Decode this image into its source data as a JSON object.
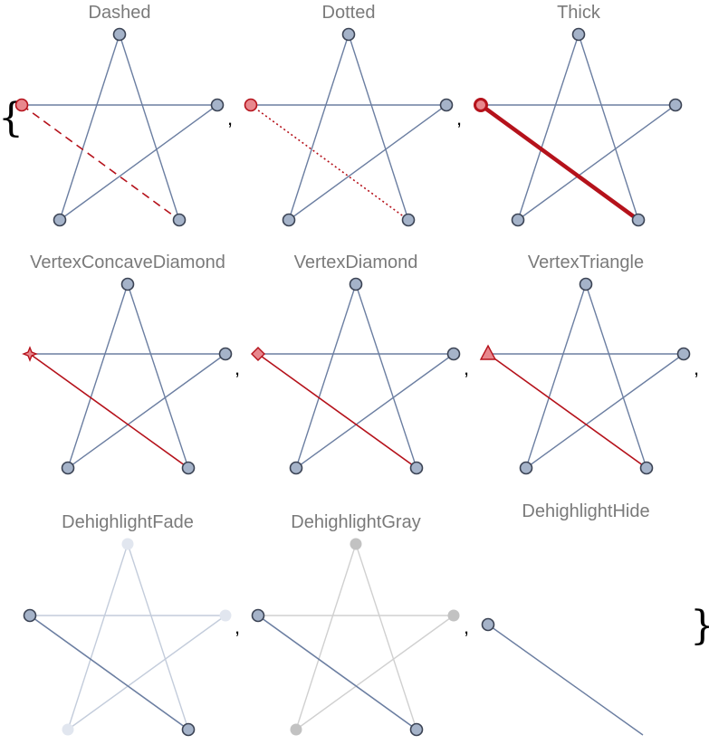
{
  "open_brace": "{",
  "close_brace": "}",
  "separator": ",",
  "colors": {
    "edge": "#6b7ea1",
    "vertex_fill": "#a5b3c9",
    "vertex_stroke": "#3b4354",
    "highlight": "#b5121b",
    "highlight_fill": "#e8878d",
    "fade_edge": "#c3ccdb",
    "fade_vertex": "#e1e6ef",
    "gray_edge": "#d0d0d0",
    "gray_vertex": "#c2c2c2"
  },
  "graphs": [
    {
      "title": "Dashed",
      "style": "dashed",
      "highlight_shape": "circle",
      "dehighlight": "none"
    },
    {
      "title": "Dotted",
      "style": "dotted",
      "highlight_shape": "circle",
      "dehighlight": "none"
    },
    {
      "title": "Thick",
      "style": "thick",
      "highlight_shape": "circle-thick",
      "dehighlight": "none"
    },
    {
      "title": "VertexConcaveDiamond",
      "style": "solid",
      "highlight_shape": "concave-diamond",
      "dehighlight": "none"
    },
    {
      "title": "VertexDiamond",
      "style": "solid",
      "highlight_shape": "diamond",
      "dehighlight": "none"
    },
    {
      "title": "VertexTriangle",
      "style": "solid",
      "highlight_shape": "triangle",
      "dehighlight": "none"
    },
    {
      "title": "DehighlightFade",
      "style": "plain",
      "highlight_shape": "normal",
      "dehighlight": "fade"
    },
    {
      "title": "DehighlightGray",
      "style": "plain",
      "highlight_shape": "normal",
      "dehighlight": "gray"
    },
    {
      "title": "DehighlightHide",
      "style": "plain",
      "highlight_shape": "normal",
      "dehighlight": "hide"
    }
  ]
}
